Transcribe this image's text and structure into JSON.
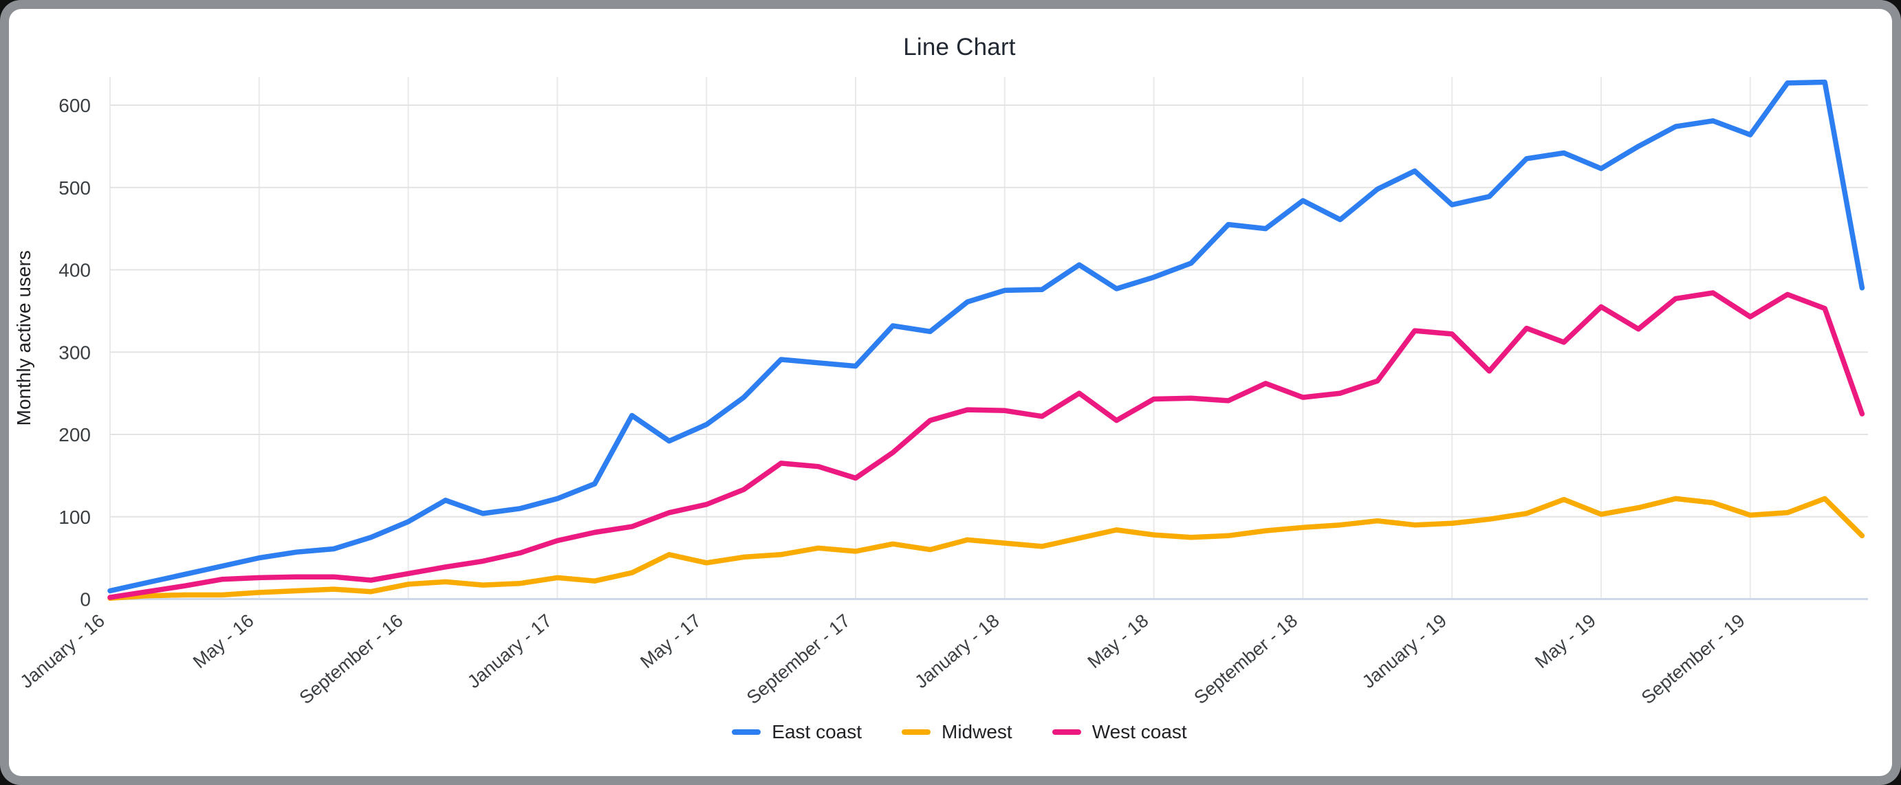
{
  "window": {
    "frame_color": "#8c9095",
    "card_color": "#ffffff"
  },
  "chart_data": {
    "type": "line",
    "title": "Line Chart",
    "xlabel": "",
    "ylabel": "Monthly active users",
    "ylim": [
      0,
      600
    ],
    "y_ticks": [
      0,
      100,
      200,
      300,
      400,
      500,
      600
    ],
    "grid": true,
    "legend_position": "bottom",
    "x_tick_positions": [
      0,
      4,
      8,
      12,
      16,
      20,
      24,
      28,
      32,
      36,
      40,
      44
    ],
    "x_tick_labels": [
      "January - 16",
      "May - 16",
      "September - 16",
      "January - 17",
      "May - 17",
      "September - 17",
      "January - 18",
      "May - 18",
      "September - 18",
      "January - 19",
      "May - 19",
      "September - 19"
    ],
    "n_points": 48,
    "months_note": "monthly points January 2016 - December 2019",
    "series": [
      {
        "name": "East coast",
        "color": "#2d7ef0",
        "values": [
          10,
          20,
          30,
          40,
          50,
          57,
          61,
          75,
          94,
          120,
          104,
          110,
          122,
          140,
          223,
          192,
          212,
          245,
          291,
          287,
          283,
          332,
          325,
          361,
          375,
          376,
          406,
          377,
          391,
          408,
          455,
          450,
          484,
          461,
          498,
          520,
          479,
          489,
          535,
          542,
          523,
          550,
          574,
          581,
          564,
          627,
          628,
          378
        ]
      },
      {
        "name": "Midwest",
        "color": "#f9ab00",
        "values": [
          1,
          4,
          5,
          5,
          8,
          10,
          12,
          9,
          18,
          21,
          17,
          19,
          26,
          22,
          32,
          54,
          44,
          51,
          54,
          62,
          58,
          67,
          60,
          72,
          68,
          64,
          74,
          84,
          78,
          75,
          77,
          83,
          87,
          90,
          95,
          90,
          92,
          97,
          104,
          121,
          103,
          111,
          122,
          117,
          102,
          105,
          122,
          77
        ]
      },
      {
        "name": "West coast",
        "color": "#ec1a80",
        "values": [
          2,
          9,
          16,
          24,
          26,
          27,
          27,
          23,
          31,
          39,
          46,
          56,
          71,
          81,
          88,
          105,
          115,
          133,
          165,
          161,
          147,
          178,
          217,
          230,
          229,
          222,
          250,
          217,
          243,
          244,
          241,
          262,
          245,
          250,
          265,
          326,
          322,
          277,
          329,
          312,
          355,
          328,
          365,
          372,
          343,
          370,
          353,
          225
        ]
      }
    ],
    "style": {
      "h_grid_color": "#e3e3e3",
      "v_grid_color": "#eaeaea",
      "baseline_color": "#cdd9e8",
      "tick_label_color": "#3c4043",
      "axis_title_color": "#202124",
      "line_width": 7.5
    }
  }
}
